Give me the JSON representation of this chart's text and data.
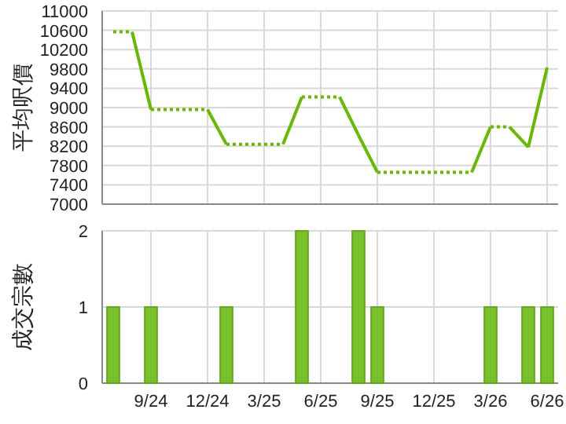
{
  "chart_data": [
    {
      "type": "line",
      "ylabel": "平均呎價",
      "categories": [
        null,
        null,
        null,
        null,
        null,
        null,
        null,
        null,
        null,
        null,
        null,
        null,
        null,
        null,
        null,
        null,
        null,
        null,
        null,
        null,
        null,
        null,
        null,
        null
      ],
      "series": [
        {
          "color": "#66bb00",
          "values": [
            10570,
            10570,
            8960,
            8960,
            8960,
            8960,
            8240,
            8240,
            8240,
            8240,
            9220,
            9220,
            9220,
            8430,
            7660,
            7660,
            7660,
            7660,
            7660,
            7660,
            8600,
            8600,
            8180,
            9830
          ]
        }
      ],
      "line_style": "dotted",
      "ylim": [
        7000,
        11000
      ],
      "yticks": [
        7000,
        7400,
        7800,
        8200,
        8600,
        9000,
        9400,
        9800,
        10200,
        10600,
        11000
      ],
      "grid": true,
      "tick_labels": "y"
    },
    {
      "type": "bar",
      "ylabel": "成交宗數",
      "categories": [
        null,
        null,
        "9/24",
        null,
        null,
        "12/24",
        null,
        null,
        "3/25",
        null,
        null,
        "6/25",
        null,
        null,
        "9/25",
        null,
        null,
        "12/25",
        null,
        null,
        "3/26",
        null,
        null,
        "6/26"
      ],
      "values": [
        1,
        0,
        1,
        0,
        0,
        0,
        1,
        0,
        0,
        0,
        2,
        0,
        0,
        2,
        1,
        0,
        0,
        0,
        0,
        0,
        1,
        0,
        1,
        1
      ],
      "color": "#77c22a",
      "ylim": [
        0,
        2
      ],
      "yticks": [
        0,
        1,
        2
      ],
      "grid": true
    }
  ]
}
